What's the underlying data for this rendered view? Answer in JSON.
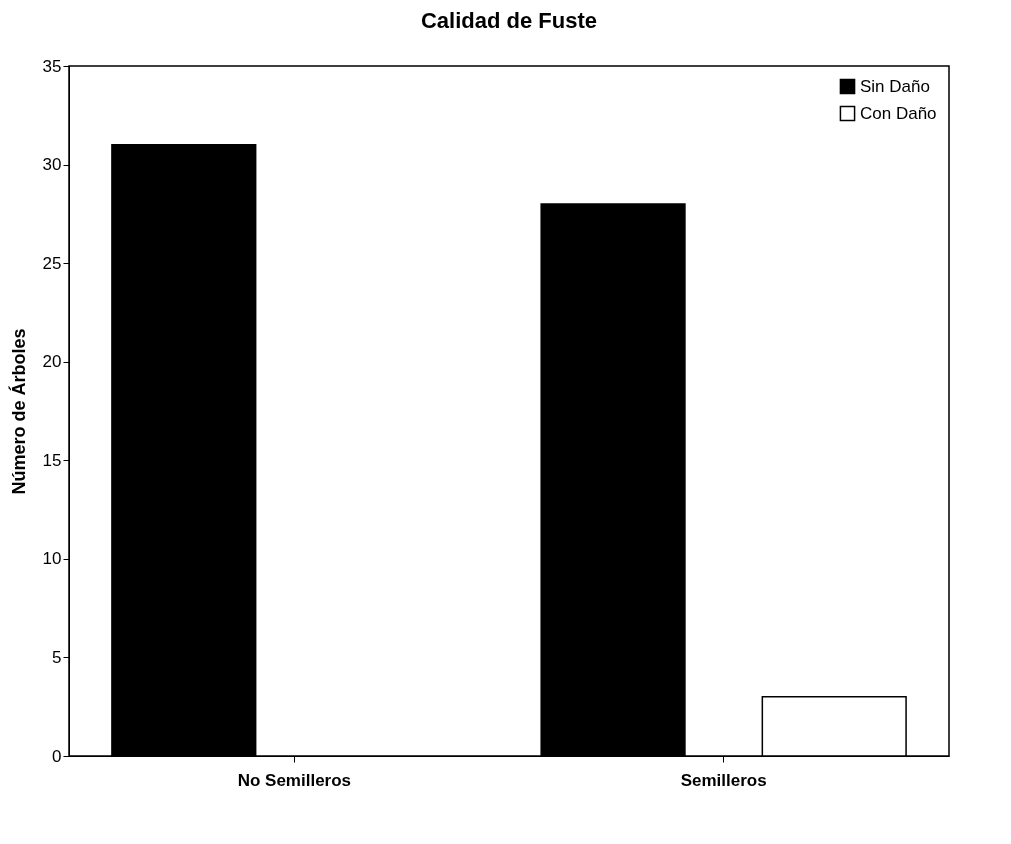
{
  "chart_data": {
    "type": "bar",
    "title": "Calidad de Fuste",
    "ylabel": "Número de Árboles",
    "categories": [
      "No Semilleros",
      "Semilleros"
    ],
    "series": [
      {
        "name": "Sin Daño",
        "color": "#000000",
        "values": [
          31,
          28
        ]
      },
      {
        "name": "Con Daño",
        "color": "#ffffff",
        "values": [
          0,
          3
        ]
      }
    ],
    "ylim": [
      0,
      35
    ],
    "yticks": [
      0,
      5,
      10,
      15,
      20,
      25,
      30,
      35
    ],
    "grid": false,
    "legend": "top right"
  }
}
